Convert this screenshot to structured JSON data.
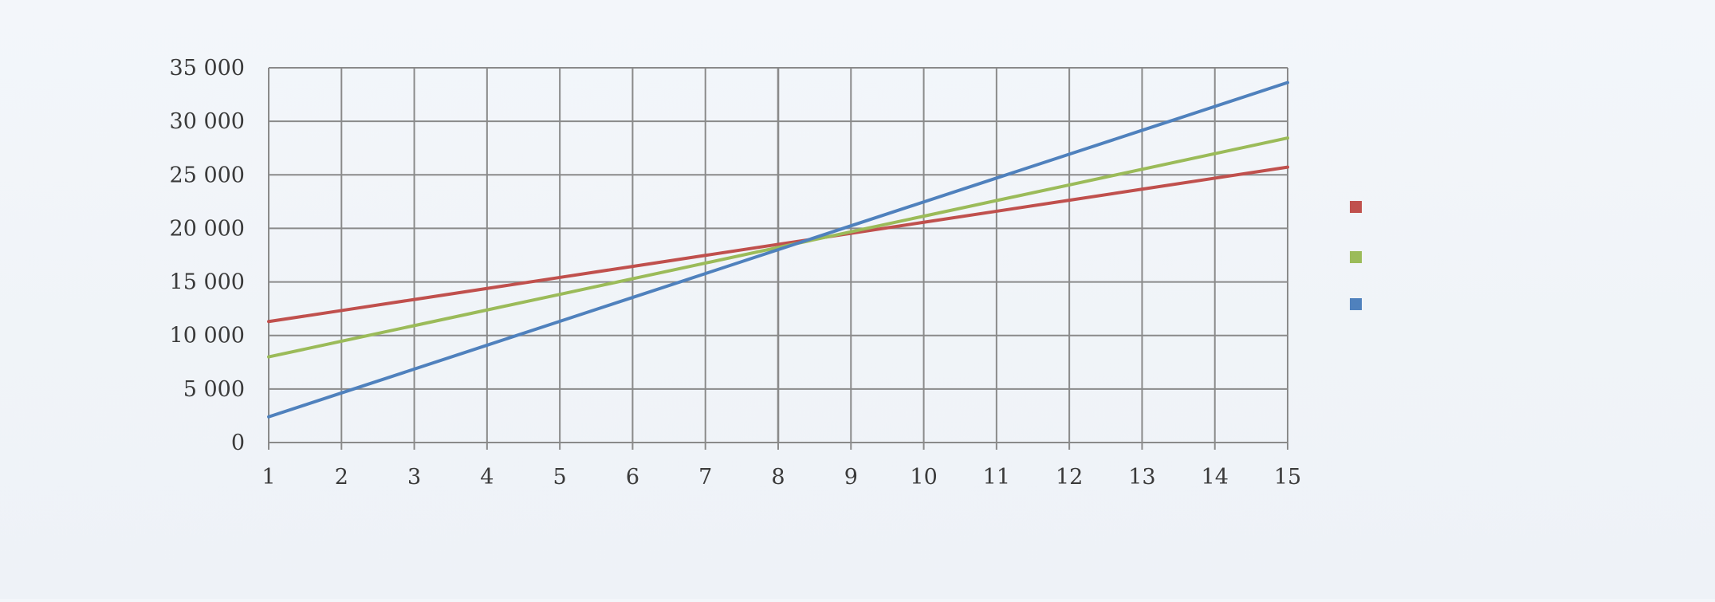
{
  "chart_data": {
    "type": "line",
    "title": "",
    "xlabel": "",
    "ylabel": "",
    "x": [
      1,
      2,
      3,
      4,
      5,
      6,
      7,
      8,
      9,
      10,
      11,
      12,
      13,
      14,
      15
    ],
    "xlim": [
      1,
      15
    ],
    "ylim": [
      0,
      35000
    ],
    "y_ticks": [
      0,
      5000,
      10000,
      15000,
      20000,
      25000,
      30000,
      35000
    ],
    "y_tick_labels": [
      "0",
      "5 000",
      "10 000",
      "15 000",
      "20 000",
      "25 000",
      "30 000",
      "35 000"
    ],
    "x_tick_labels": [
      "1",
      "2",
      "3",
      "4",
      "5",
      "6",
      "7",
      "8",
      "9",
      "10",
      "11",
      "12",
      "13",
      "14",
      "15"
    ],
    "grid": true,
    "legend_position": "right",
    "series": [
      {
        "name": "",
        "color": "#c0504d",
        "values": [
          11300,
          12330,
          13360,
          14390,
          15420,
          16450,
          17480,
          18510,
          19540,
          20570,
          21600,
          22630,
          23660,
          24690,
          25720
        ]
      },
      {
        "name": "",
        "color": "#9bbb59",
        "values": [
          8000,
          9460,
          10920,
          12380,
          13840,
          15300,
          16760,
          18220,
          19680,
          21140,
          22600,
          24060,
          25520,
          26980,
          28440
        ]
      },
      {
        "name": "",
        "color": "#4f81bd",
        "values": [
          2400,
          4630,
          6860,
          9090,
          11320,
          13550,
          15780,
          18010,
          20240,
          22470,
          24700,
          26930,
          29160,
          31390,
          33620
        ]
      }
    ]
  }
}
